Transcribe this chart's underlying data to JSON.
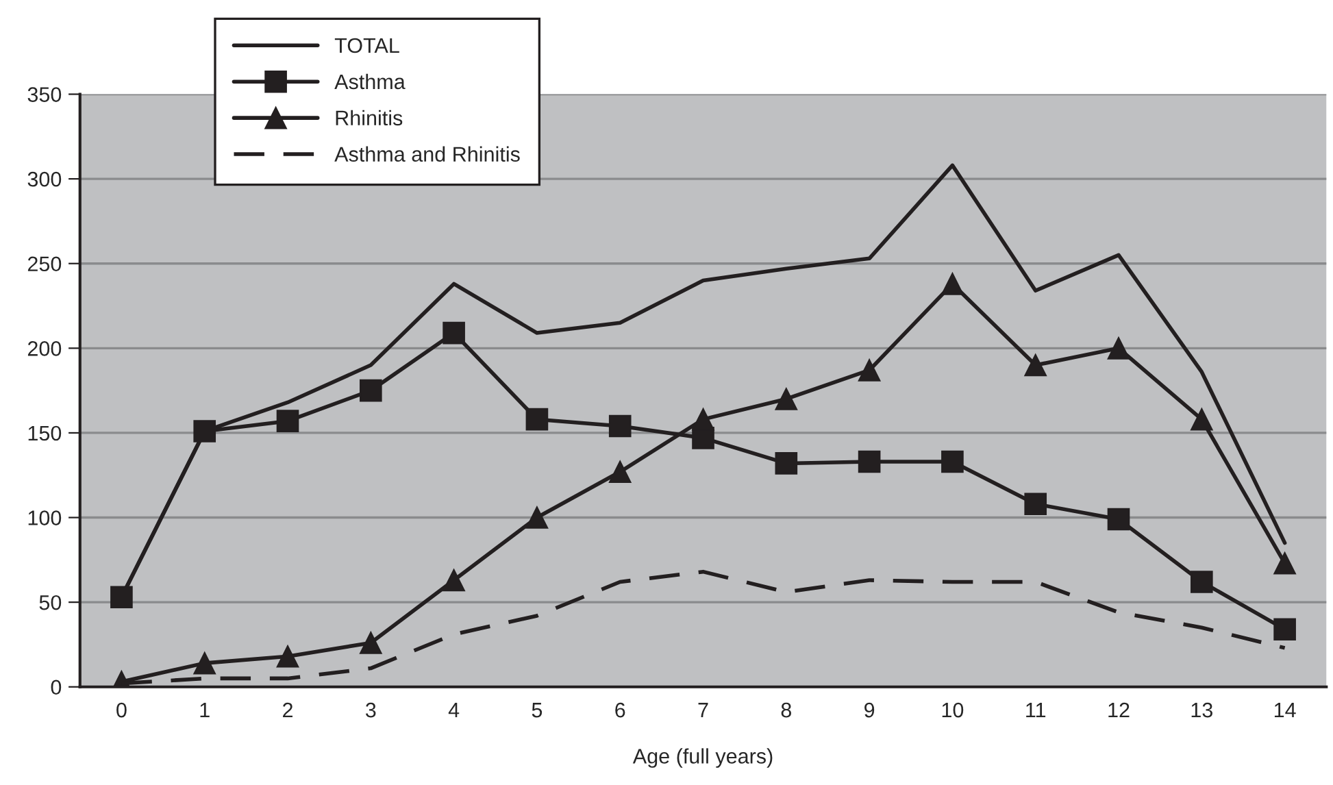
{
  "chart_data": {
    "type": "line",
    "xlabel": "Age (full years)",
    "categories": [
      "0",
      "1",
      "2",
      "3",
      "4",
      "5",
      "6",
      "7",
      "8",
      "9",
      "10",
      "11",
      "12",
      "13",
      "14"
    ],
    "series": [
      {
        "name": "TOTAL",
        "color": "#231f20",
        "marker": "none",
        "line_style": "solid",
        "values": [
          53,
          151,
          168,
          190,
          238,
          209,
          215,
          240,
          247,
          253,
          308,
          234,
          255,
          186,
          85
        ]
      },
      {
        "name": "Asthma",
        "color": "#231f20",
        "marker": "square",
        "line_style": "solid",
        "values": [
          53,
          151,
          157,
          175,
          209,
          158,
          154,
          147,
          132,
          133,
          133,
          108,
          99,
          62,
          34
        ]
      },
      {
        "name": "Rhinitis",
        "color": "#231f20",
        "marker": "triangle",
        "line_style": "solid",
        "values": [
          3,
          14,
          18,
          26,
          63,
          100,
          127,
          158,
          170,
          187,
          238,
          190,
          200,
          158,
          73
        ]
      },
      {
        "name": "Asthma and Rhinitis",
        "color": "#231f20",
        "marker": "none",
        "line_style": "dashed",
        "values": [
          2,
          5,
          5,
          11,
          31,
          42,
          62,
          68,
          56,
          63,
          62,
          62,
          44,
          35,
          23
        ]
      }
    ],
    "ylim": [
      0,
      350
    ],
    "yticks": [
      0,
      50,
      100,
      150,
      200,
      250,
      300,
      350
    ],
    "grid": "y",
    "legend": "top left"
  }
}
